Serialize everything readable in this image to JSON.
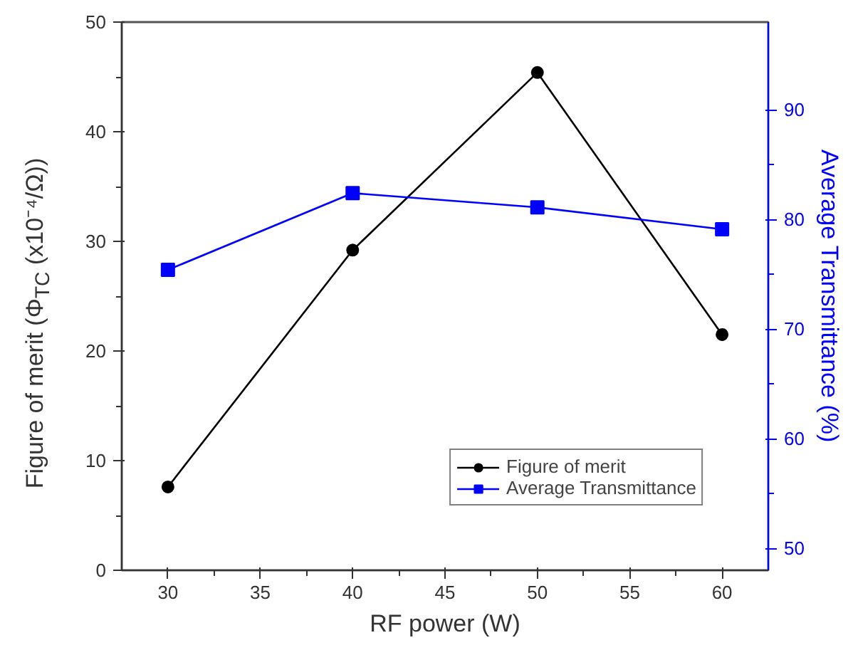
{
  "chart_data": {
    "type": "line",
    "xlabel": "RF power (W)",
    "ylabel": "Figure of merit (Φ$_{TC}$ (x10⁻⁴/Ω))",
    "y2label": "Average Transmittance (%)",
    "x": [
      30,
      40,
      50,
      60
    ],
    "series": [
      {
        "name": "Figure of merit",
        "color": "#000000",
        "values": [
          7.6,
          29.2,
          45.4,
          21.5
        ],
        "marker": "circle"
      },
      {
        "name": "Average Transmittance",
        "color": "#0000ff",
        "values": [
          75.4,
          82.4,
          81.1,
          79.1
        ],
        "marker": "square",
        "axis": "y2"
      }
    ],
    "xlim": [
      27.5,
      62.5
    ],
    "xticks": [
      30,
      35,
      40,
      45,
      50,
      55,
      60
    ],
    "ylim": [
      0,
      50
    ],
    "yticks": [
      0,
      10,
      20,
      30,
      40,
      50
    ],
    "y2lim": [
      48,
      98
    ],
    "y2ticks": [
      50,
      60,
      70,
      80,
      90
    ],
    "grid": false,
    "legend": "bottom right",
    "line_style": "solid"
  }
}
